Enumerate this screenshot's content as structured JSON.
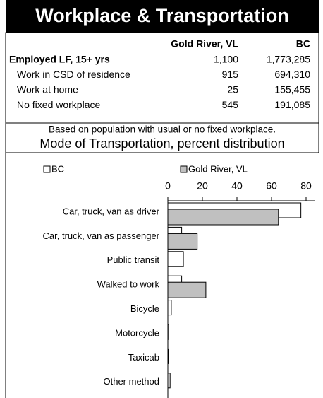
{
  "header": {
    "title": "Workplace & Transportation"
  },
  "table": {
    "columns": [
      "Gold River, VL",
      "BC"
    ],
    "rows": [
      {
        "label": "Employed LF, 15+ yrs",
        "values": [
          "1,100",
          "1,773,285"
        ]
      },
      {
        "label": "Work in CSD of residence",
        "values": [
          "915",
          "694,310"
        ]
      },
      {
        "label": "Work at home",
        "values": [
          "25",
          "155,455"
        ]
      },
      {
        "label": "No fixed workplace",
        "values": [
          "545",
          "191,085"
        ]
      }
    ]
  },
  "note": "Based on population with usual or no fixed workplace.",
  "chart_data": {
    "type": "bar",
    "orientation": "horizontal",
    "title": "Mode of Transportation, percent distribution",
    "categories": [
      "Car, truck, van as driver",
      "Car, truck, van as passenger",
      "Public transit",
      "Walked to work",
      "Bicycle",
      "Motorcycle",
      "Taxicab",
      "Other method"
    ],
    "series": [
      {
        "name": "BC",
        "color": "#ffffff",
        "values": [
          77,
          8,
          9,
          8,
          2,
          0.5,
          0.4,
          1.3
        ]
      },
      {
        "name": "Gold River, VL",
        "color": "#c0c0c0",
        "values": [
          64,
          17,
          0,
          22,
          0,
          0,
          0,
          0
        ]
      }
    ],
    "xlim": [
      0,
      80
    ],
    "xticks": [
      0,
      20,
      40,
      60,
      80
    ],
    "legend": "top"
  }
}
